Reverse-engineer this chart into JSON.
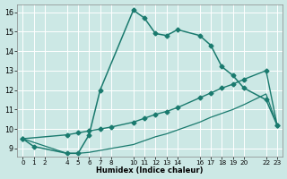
{
  "xlabel": "Humidex (Indice chaleur)",
  "bg_color": "#cce8e5",
  "line_color": "#1a7a6e",
  "xlim": [
    -0.5,
    23.5
  ],
  "ylim": [
    8.6,
    16.4
  ],
  "xticks": [
    0,
    1,
    2,
    4,
    5,
    6,
    7,
    8,
    10,
    11,
    12,
    13,
    14,
    16,
    17,
    18,
    19,
    20,
    22,
    23
  ],
  "yticks": [
    9,
    10,
    11,
    12,
    13,
    14,
    15,
    16
  ],
  "curve1_x": [
    0,
    1,
    4,
    5,
    6,
    7,
    10,
    11,
    12,
    13,
    14,
    16,
    17,
    18,
    19,
    20,
    22,
    23
  ],
  "curve1_y": [
    9.5,
    9.1,
    8.75,
    8.75,
    9.7,
    12.0,
    16.1,
    15.7,
    14.9,
    14.8,
    15.1,
    14.8,
    14.3,
    13.2,
    12.75,
    12.1,
    11.5,
    10.2
  ],
  "curve2_x": [
    0,
    4,
    5,
    6,
    7,
    8,
    10,
    11,
    12,
    13,
    14,
    16,
    17,
    18,
    19,
    20,
    22,
    23
  ],
  "curve2_y": [
    9.5,
    9.7,
    9.8,
    9.9,
    10.0,
    10.1,
    10.35,
    10.55,
    10.75,
    10.9,
    11.1,
    11.6,
    11.85,
    12.1,
    12.3,
    12.55,
    13.0,
    10.2
  ],
  "curve3_x": [
    0,
    4,
    5,
    6,
    7,
    8,
    10,
    11,
    12,
    13,
    14,
    16,
    17,
    18,
    19,
    20,
    22,
    23
  ],
  "curve3_y": [
    9.5,
    8.75,
    8.75,
    8.8,
    8.9,
    9.0,
    9.2,
    9.4,
    9.6,
    9.75,
    9.95,
    10.35,
    10.6,
    10.8,
    11.0,
    11.25,
    11.8,
    10.2
  ]
}
